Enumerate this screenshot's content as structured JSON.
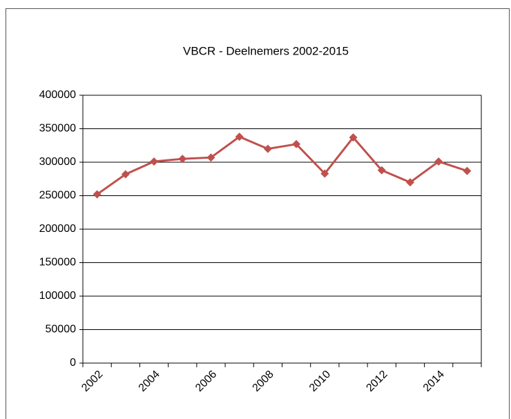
{
  "chart_data": {
    "type": "line",
    "title": "VBCR - Deelnemers 2002-2015",
    "categories": [
      "2002",
      null,
      "2004",
      null,
      "2006",
      null,
      "2008",
      null,
      "2010",
      null,
      "2012",
      null,
      "2014",
      null
    ],
    "series": [
      {
        "name": "Deelnemers",
        "color": "#c0504d",
        "values": [
          252000,
          282000,
          301000,
          305000,
          307000,
          338000,
          320000,
          327000,
          283000,
          337000,
          288000,
          270000,
          301000,
          287000
        ]
      }
    ],
    "ylim": [
      0,
      400000
    ],
    "yticks": [
      0,
      50000,
      100000,
      150000,
      200000,
      250000,
      300000,
      350000,
      400000
    ],
    "grid": true,
    "legend": false
  }
}
